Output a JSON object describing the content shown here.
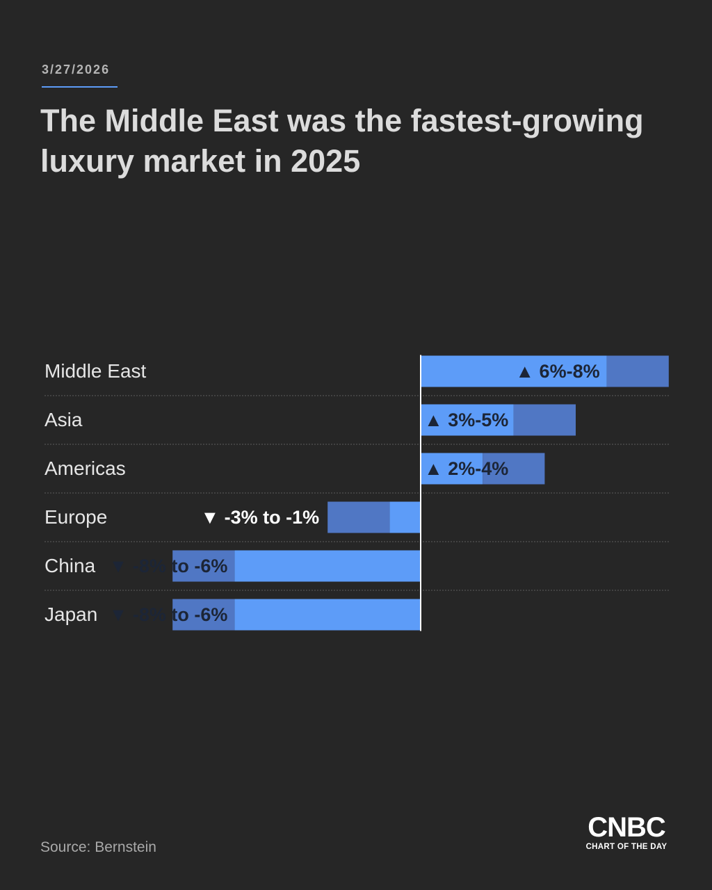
{
  "header": {
    "date": "3/27/2026",
    "title": "The Middle East was the fastest-growing luxury market in 2025"
  },
  "chart_data": {
    "type": "bar",
    "subtype": "floating-range",
    "categories": [
      "Middle East",
      "Asia",
      "Americas",
      "Europe",
      "China",
      "Japan"
    ],
    "ranges": [
      [
        6,
        8
      ],
      [
        3,
        5
      ],
      [
        2,
        4
      ],
      [
        -3,
        -1
      ],
      [
        -8,
        -6
      ],
      [
        -8,
        -6
      ]
    ],
    "labels": [
      "6%-8%",
      "3%-5%",
      "2%-4%",
      "-3% to -1%",
      "-8% to -6%",
      "-8% to -6%"
    ],
    "unit": "%",
    "title": "The Middle East was the fastest-growing luxury market in 2025",
    "xlabel": "",
    "ylabel": "",
    "xlim": [
      -8,
      8
    ]
  },
  "colors": {
    "background": "#262626",
    "bar_light": "#5d9cf8",
    "bar_dark": "#5077c4",
    "accent_rule": "#5d9cf8",
    "row_label": "#e6e6e6",
    "value_on_bar": "#1c2536",
    "value_off_bar": "#ffffff",
    "divider": "#4b4b4b"
  },
  "footer": {
    "source": "Source: Bernstein",
    "brand": "CNBC",
    "brand_tagline": "CHART OF THE DAY"
  }
}
